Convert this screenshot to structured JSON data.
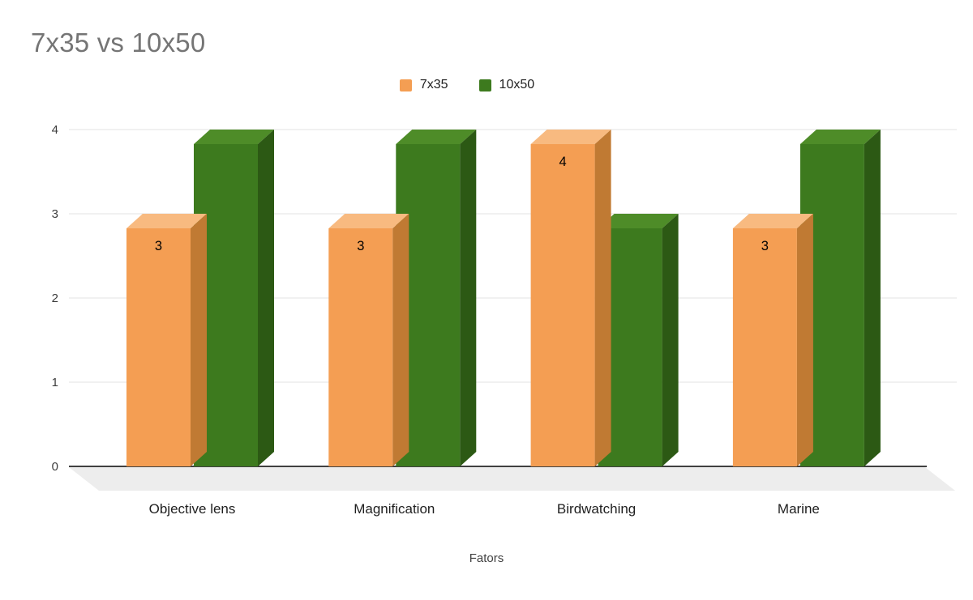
{
  "chart_data": {
    "type": "bar",
    "variant": "3d-column",
    "title": "7x35 vs 10x50",
    "categories": [
      "Objective lens",
      "Magnification",
      "Birdwatching",
      "Marine"
    ],
    "series": [
      {
        "name": "7x35",
        "color": "#F49E53",
        "color_top": "#F8BA80",
        "color_side": "#C07A33",
        "values": [
          3,
          3,
          4,
          3
        ],
        "data_labels": [
          "3",
          "3",
          "4",
          "3"
        ]
      },
      {
        "name": "10x50",
        "color": "#3D7A1E",
        "color_top": "#4E8C28",
        "color_side": "#2C5914",
        "values": [
          4,
          4,
          3,
          4
        ],
        "data_labels": []
      }
    ],
    "xlabel": "Fators",
    "ylabel": "",
    "ylim": [
      0,
      4
    ],
    "y_ticks": [
      0,
      1,
      2,
      3,
      4
    ],
    "grid": true,
    "legend_position": "top-center",
    "value_label_color": "#000000",
    "axis_text_color": "#3c3c3c",
    "category_text_color": "#1f1f1f",
    "gridline_color": "#e3e3e3",
    "axis_line_color": "#000000",
    "floor_color": "#ededed",
    "title_color": "#757575",
    "background": "#ffffff"
  }
}
